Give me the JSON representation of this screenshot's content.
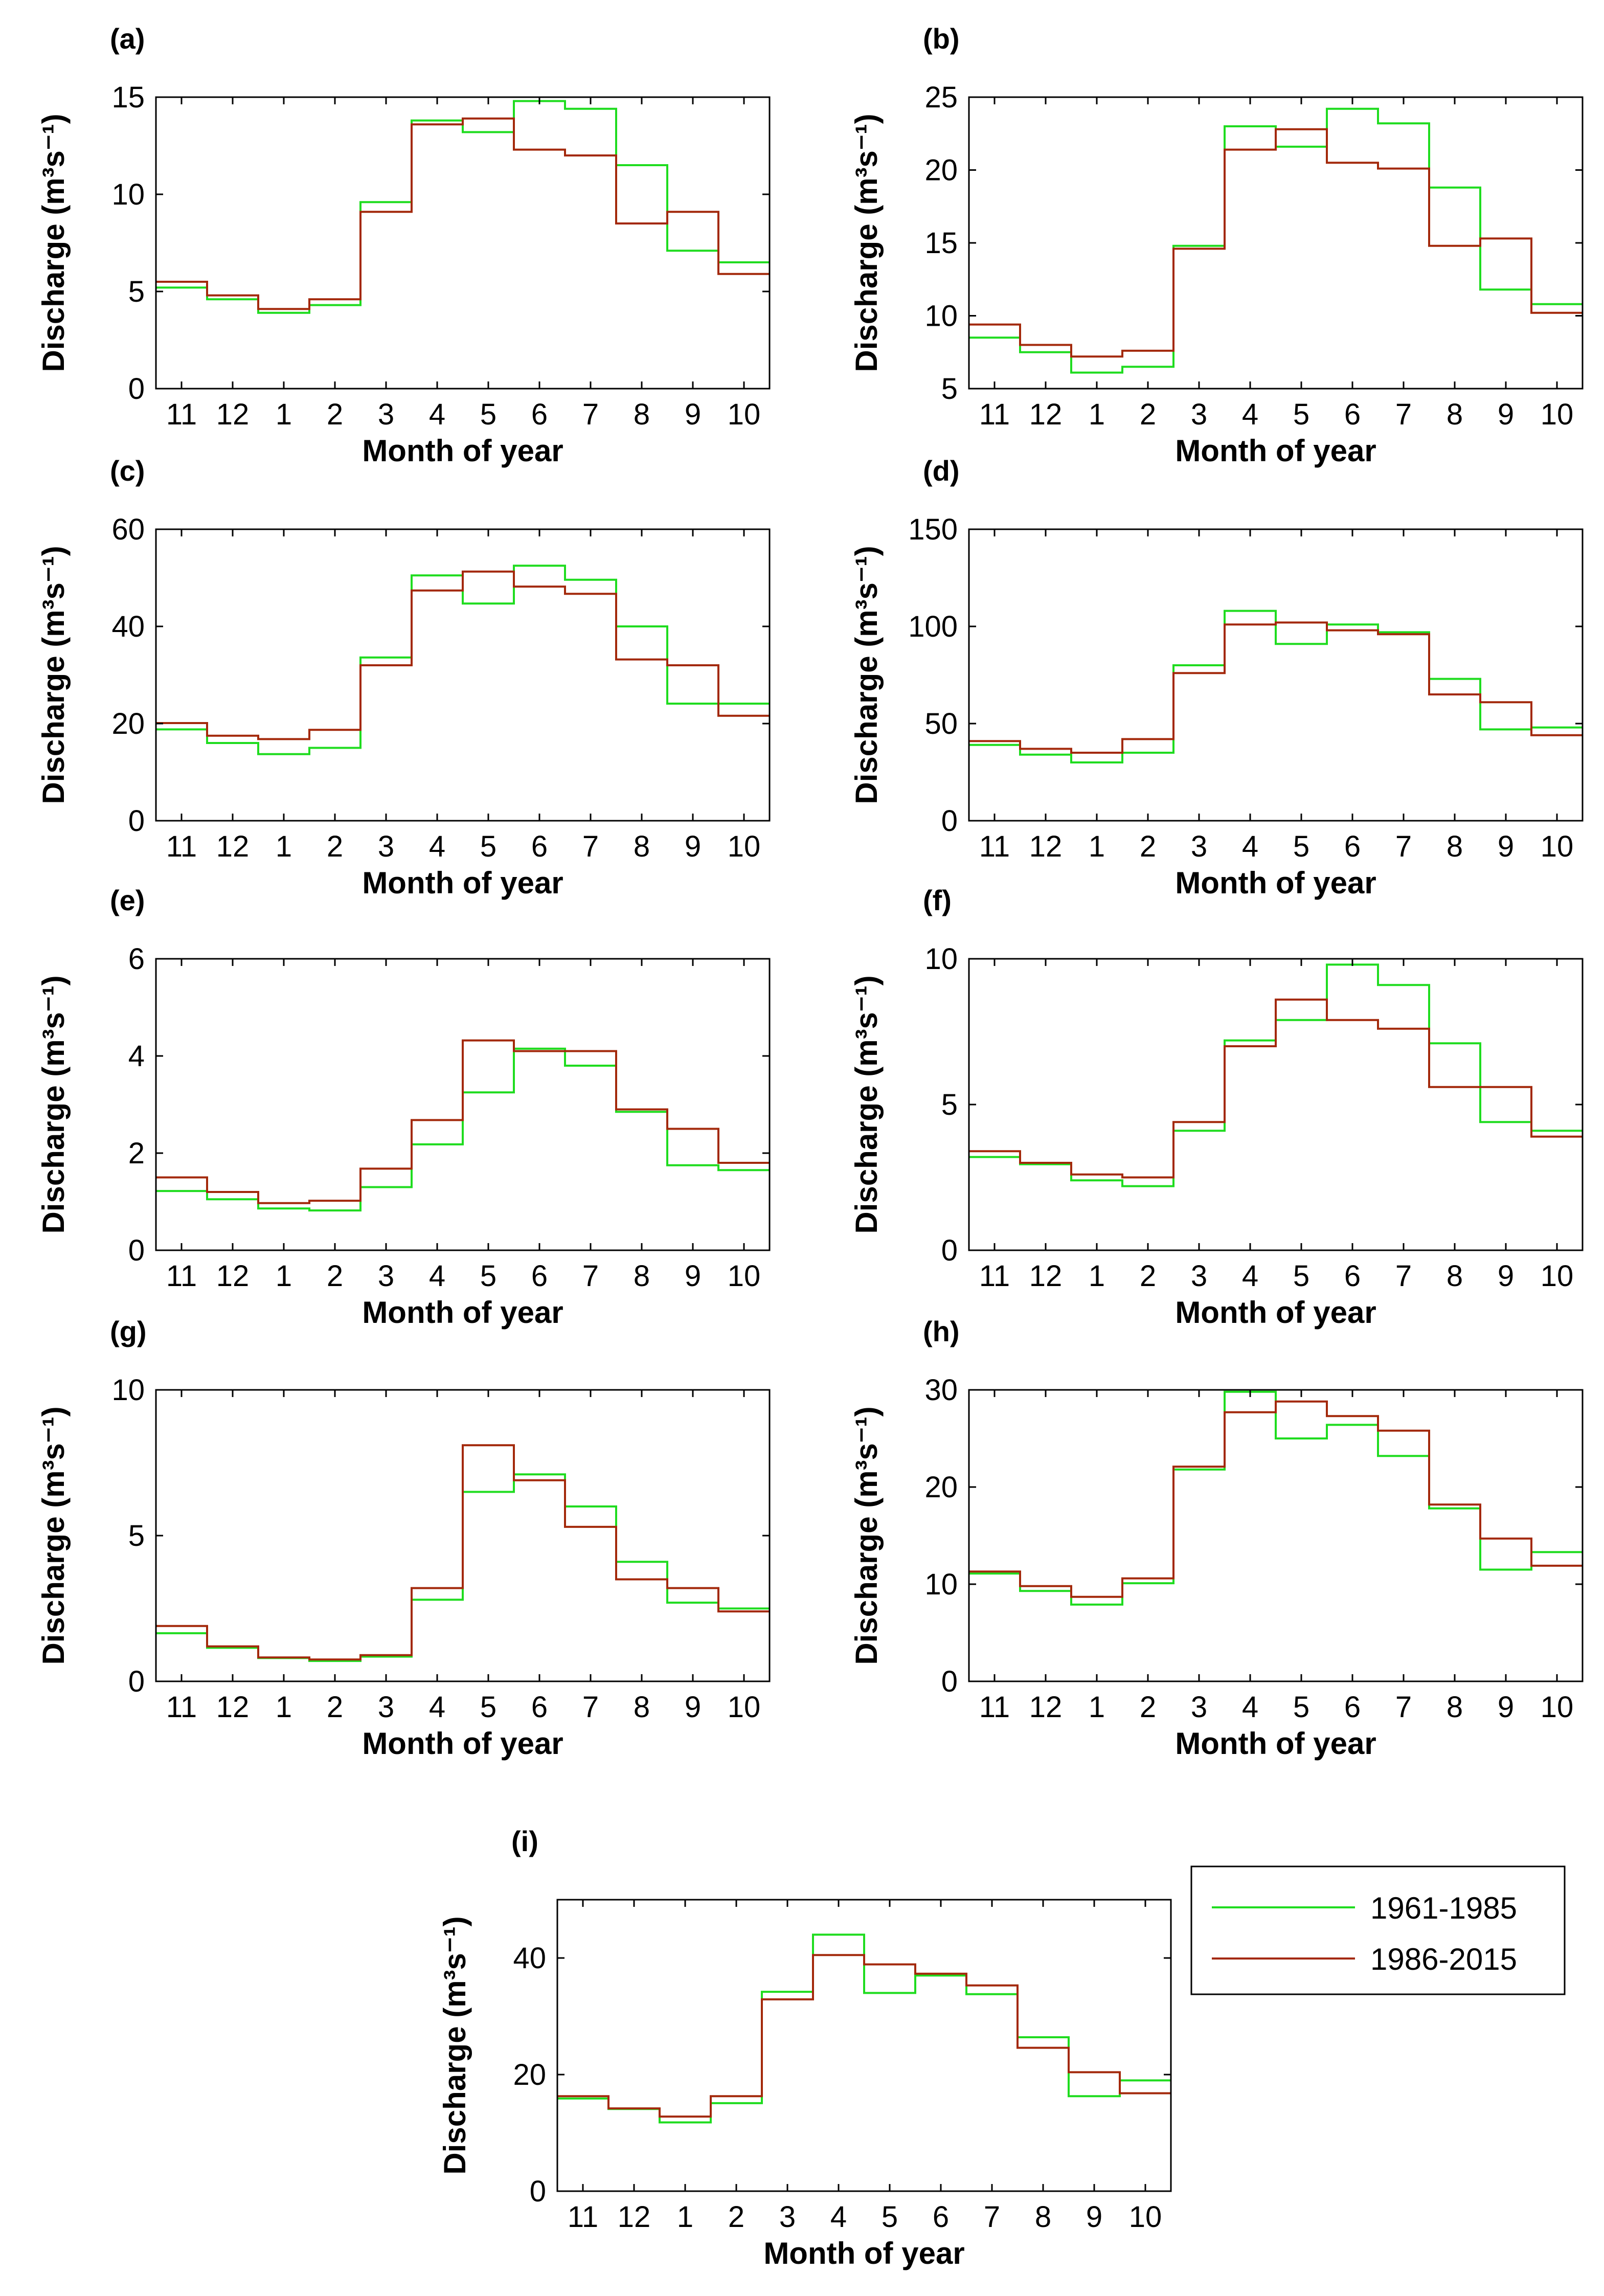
{
  "figure": {
    "colors": {
      "green": "#1fdc1f",
      "brown": "#a3290b",
      "axis": "#000000"
    },
    "legend": [
      {
        "label": "1961-1985",
        "color": "#1fdc1f"
      },
      {
        "label": "1986-2015",
        "color": "#a3290b"
      }
    ]
  },
  "chart_data": [
    {
      "id": "a",
      "panel_label": "(a)",
      "type": "line",
      "categories": [
        "11",
        "12",
        "1",
        "2",
        "3",
        "4",
        "5",
        "6",
        "7",
        "8",
        "9",
        "10"
      ],
      "xlabel": "Month of year",
      "ylabel": "Discharge (m³s⁻¹)",
      "ylim": [
        0,
        15
      ],
      "yticks": [
        "0",
        "5",
        "10",
        "15"
      ],
      "series": [
        {
          "name": "1961-1985",
          "values": [
            5.2,
            4.6,
            3.9,
            4.3,
            9.6,
            13.8,
            13.2,
            14.8,
            14.4,
            11.5,
            7.1,
            6.5
          ]
        },
        {
          "name": "1986-2015",
          "values": [
            5.5,
            4.8,
            4.1,
            4.6,
            9.1,
            13.6,
            13.9,
            12.3,
            12.0,
            8.5,
            9.1,
            5.9
          ]
        }
      ]
    },
    {
      "id": "b",
      "panel_label": "(b)",
      "type": "line",
      "categories": [
        "11",
        "12",
        "1",
        "2",
        "3",
        "4",
        "5",
        "6",
        "7",
        "8",
        "9",
        "10"
      ],
      "xlabel": "Month of year",
      "ylabel": "Discharge (m³s⁻¹)",
      "ylim": [
        5,
        25
      ],
      "yticks": [
        "5",
        "10",
        "15",
        "20",
        "25"
      ],
      "series": [
        {
          "name": "1961-1985",
          "values": [
            8.5,
            7.5,
            6.1,
            6.5,
            14.8,
            23.0,
            21.6,
            24.2,
            23.2,
            18.8,
            11.8,
            10.8
          ]
        },
        {
          "name": "1986-2015",
          "values": [
            9.4,
            8.0,
            7.2,
            7.6,
            14.6,
            21.4,
            22.8,
            20.5,
            20.1,
            14.8,
            15.3,
            10.2
          ]
        }
      ]
    },
    {
      "id": "c",
      "panel_label": "(c)",
      "type": "line",
      "categories": [
        "11",
        "12",
        "1",
        "2",
        "3",
        "4",
        "5",
        "6",
        "7",
        "8",
        "9",
        "10"
      ],
      "xlabel": "Month of year",
      "ylabel": "Discharge (m³s⁻¹)",
      "ylim": [
        0,
        60
      ],
      "yticks": [
        "0",
        "20",
        "40",
        "60"
      ],
      "series": [
        {
          "name": "1961-1985",
          "values": [
            18.8,
            16.0,
            13.7,
            15.0,
            33.6,
            50.5,
            44.7,
            52.5,
            49.6,
            40.0,
            24.1,
            24.1
          ]
        },
        {
          "name": "1986-2015",
          "values": [
            20.1,
            17.5,
            16.8,
            18.7,
            32.0,
            47.4,
            51.3,
            48.2,
            46.7,
            33.2,
            32.0,
            21.6
          ]
        }
      ]
    },
    {
      "id": "d",
      "panel_label": "(d)",
      "type": "line",
      "categories": [
        "11",
        "12",
        "1",
        "2",
        "3",
        "4",
        "5",
        "6",
        "7",
        "8",
        "9",
        "10"
      ],
      "xlabel": "Month of year",
      "ylabel": "Discharge (m³s⁻¹)",
      "ylim": [
        0,
        150
      ],
      "yticks": [
        "0",
        "50",
        "100",
        "150"
      ],
      "series": [
        {
          "name": "1961-1985",
          "values": [
            39,
            34,
            30,
            35,
            80,
            108,
            91,
            101,
            97,
            73,
            47,
            48
          ]
        },
        {
          "name": "1986-2015",
          "values": [
            41,
            37,
            35,
            42,
            76,
            101,
            102,
            98,
            96,
            65,
            61,
            44
          ]
        }
      ]
    },
    {
      "id": "e",
      "panel_label": "(e)",
      "type": "line",
      "categories": [
        "11",
        "12",
        "1",
        "2",
        "3",
        "4",
        "5",
        "6",
        "7",
        "8",
        "9",
        "10"
      ],
      "xlabel": "Month of year",
      "ylabel": "Discharge (m³s⁻¹)",
      "ylim": [
        0,
        6
      ],
      "yticks": [
        "0",
        "2",
        "4",
        "6"
      ],
      "series": [
        {
          "name": "1961-1985",
          "values": [
            1.22,
            1.05,
            0.86,
            0.82,
            1.3,
            2.18,
            3.25,
            4.15,
            3.8,
            2.85,
            1.75,
            1.65
          ]
        },
        {
          "name": "1986-2015",
          "values": [
            1.5,
            1.2,
            0.97,
            1.02,
            1.68,
            2.68,
            4.32,
            4.1,
            4.1,
            2.9,
            2.5,
            1.8
          ]
        }
      ]
    },
    {
      "id": "f",
      "panel_label": "(f)",
      "type": "line",
      "categories": [
        "11",
        "12",
        "1",
        "2",
        "3",
        "4",
        "5",
        "6",
        "7",
        "8",
        "9",
        "10"
      ],
      "xlabel": "Month of year",
      "ylabel": "Discharge (m³s⁻¹)",
      "ylim": [
        0,
        10
      ],
      "yticks": [
        "0",
        "5",
        "10"
      ],
      "series": [
        {
          "name": "1961-1985",
          "values": [
            3.2,
            2.95,
            2.4,
            2.2,
            4.1,
            7.2,
            7.9,
            9.8,
            9.1,
            7.1,
            4.4,
            4.1
          ]
        },
        {
          "name": "1986-2015",
          "values": [
            3.4,
            3.0,
            2.6,
            2.5,
            4.4,
            7.0,
            8.6,
            7.9,
            7.6,
            5.6,
            5.6,
            3.9
          ]
        }
      ]
    },
    {
      "id": "g",
      "panel_label": "(g)",
      "type": "line",
      "categories": [
        "11",
        "12",
        "1",
        "2",
        "3",
        "4",
        "5",
        "6",
        "7",
        "8",
        "9",
        "10"
      ],
      "xlabel": "Month of year",
      "ylabel": "Discharge (m³s⁻¹)",
      "ylim": [
        0,
        10
      ],
      "yticks": [
        "0",
        "5",
        "10"
      ],
      "series": [
        {
          "name": "1961-1985",
          "values": [
            1.65,
            1.15,
            0.8,
            0.7,
            0.85,
            2.8,
            6.5,
            7.1,
            6.0,
            4.1,
            2.7,
            2.5
          ]
        },
        {
          "name": "1986-2015",
          "values": [
            1.9,
            1.2,
            0.82,
            0.75,
            0.9,
            3.2,
            8.1,
            6.9,
            5.3,
            3.5,
            3.2,
            2.4
          ]
        }
      ]
    },
    {
      "id": "h",
      "panel_label": "(h)",
      "type": "line",
      "categories": [
        "11",
        "12",
        "1",
        "2",
        "3",
        "4",
        "5",
        "6",
        "7",
        "8",
        "9",
        "10"
      ],
      "xlabel": "Month of year",
      "ylabel": "Discharge (m³s⁻¹)",
      "ylim": [
        0,
        30
      ],
      "yticks": [
        "0",
        "10",
        "20",
        "30"
      ],
      "series": [
        {
          "name": "1961-1985",
          "values": [
            11.1,
            9.3,
            7.9,
            10.1,
            21.8,
            29.8,
            25.0,
            26.4,
            23.2,
            17.8,
            11.5,
            13.3
          ]
        },
        {
          "name": "1986-2015",
          "values": [
            11.3,
            9.8,
            8.7,
            10.6,
            22.1,
            27.7,
            28.8,
            27.3,
            25.8,
            18.2,
            14.7,
            11.9
          ]
        }
      ]
    },
    {
      "id": "i",
      "panel_label": "(i)",
      "type": "line",
      "categories": [
        "11",
        "12",
        "1",
        "2",
        "3",
        "4",
        "5",
        "6",
        "7",
        "8",
        "9",
        "10"
      ],
      "xlabel": "Month of year",
      "ylabel": "Discharge (m³s⁻¹)",
      "ylim": [
        0,
        50
      ],
      "yticks": [
        "0",
        "20",
        "40"
      ],
      "series": [
        {
          "name": "1961-1985",
          "values": [
            15.9,
            14.1,
            11.8,
            15.1,
            34.2,
            44.0,
            34.0,
            37.0,
            33.8,
            26.4,
            16.3,
            19.0
          ]
        },
        {
          "name": "1986-2015",
          "values": [
            16.3,
            14.2,
            12.8,
            16.3,
            32.9,
            40.5,
            38.9,
            37.3,
            35.3,
            24.6,
            20.4,
            16.8
          ]
        }
      ]
    }
  ]
}
